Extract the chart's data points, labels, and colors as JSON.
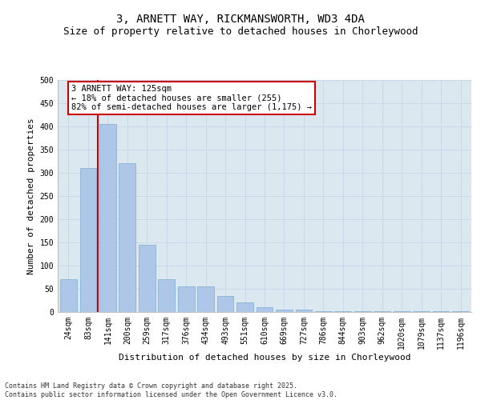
{
  "title_line1": "3, ARNETT WAY, RICKMANSWORTH, WD3 4DA",
  "title_line2": "Size of property relative to detached houses in Chorleywood",
  "xlabel": "Distribution of detached houses by size in Chorleywood",
  "ylabel": "Number of detached properties",
  "categories": [
    "24sqm",
    "83sqm",
    "141sqm",
    "200sqm",
    "259sqm",
    "317sqm",
    "376sqm",
    "434sqm",
    "493sqm",
    "551sqm",
    "610sqm",
    "669sqm",
    "727sqm",
    "786sqm",
    "844sqm",
    "903sqm",
    "962sqm",
    "1020sqm",
    "1079sqm",
    "1137sqm",
    "1196sqm"
  ],
  "values": [
    70,
    310,
    405,
    320,
    145,
    70,
    55,
    55,
    35,
    20,
    10,
    5,
    5,
    2,
    1,
    1,
    1,
    1,
    1,
    1,
    2
  ],
  "bar_color": "#aec6e8",
  "bar_edge_color": "#7bafd4",
  "vline_x_index": 1.5,
  "vline_color": "#cc0000",
  "annotation_text": "3 ARNETT WAY: 125sqm\n← 18% of detached houses are smaller (255)\n82% of semi-detached houses are larger (1,175) →",
  "annotation_box_color": "#ffffff",
  "annotation_box_edge_color": "#cc0000",
  "ylim": [
    0,
    500
  ],
  "yticks": [
    0,
    50,
    100,
    150,
    200,
    250,
    300,
    350,
    400,
    450,
    500
  ],
  "footnote": "Contains HM Land Registry data © Crown copyright and database right 2025.\nContains public sector information licensed under the Open Government Licence v3.0.",
  "background_color": "#ffffff",
  "grid_color": "#c8d8e8",
  "plot_bg_color": "#dce8f0",
  "title_fontsize": 10,
  "subtitle_fontsize": 9,
  "axis_label_fontsize": 8,
  "tick_fontsize": 7,
  "annotation_fontsize": 7.5,
  "footnote_fontsize": 6
}
